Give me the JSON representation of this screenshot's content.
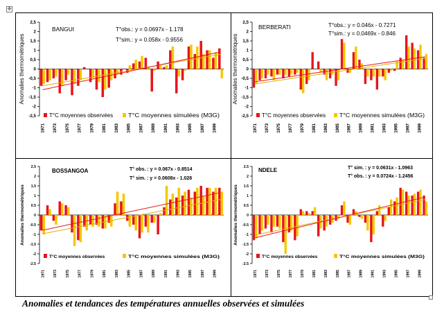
{
  "caption": "Anomalies et tendances des températures annuelles observées et simulées",
  "colors": {
    "observed": "#e8141c",
    "simulated": "#f5c800",
    "axis": "#000000"
  },
  "chart_data": [
    {
      "type": "bar",
      "station": "BANGUI",
      "ylabel": "Anomalies thermométriques",
      "ylim": [
        -2.5,
        2.5
      ],
      "yticks": [
        "2,5",
        "2",
        "1,5",
        "1",
        "0,5",
        "0",
        "-0,5",
        "-1",
        "-1,5",
        "-2",
        "-2,5"
      ],
      "x": [
        1971,
        1972,
        1973,
        1974,
        1975,
        1976,
        1977,
        1978,
        1979,
        1980,
        1981,
        1982,
        1983,
        1984,
        1985,
        1986,
        1987,
        1988,
        1989,
        1990,
        1991,
        1992,
        1993,
        1994,
        1995,
        1996,
        1997,
        1998,
        1999,
        2000
      ],
      "xticks": [
        "1971",
        "1973",
        "1975",
        "1977",
        "1979",
        "1981",
        "1983",
        "1985",
        "1987",
        "1989",
        "1991",
        "1993",
        "1995",
        "1997",
        "1999"
      ],
      "equations": [
        "T°obs.: y = 0.0697x - 1.178",
        "T°sim.: y = 0.058x - 0.9556"
      ],
      "trend_obs": {
        "slope": 0.0697,
        "intercept": -1.178
      },
      "trend_sim": {
        "slope": 0.058,
        "intercept": -0.9556
      },
      "series": [
        {
          "name": "T°C moyennes observées",
          "values": [
            -0.9,
            -0.7,
            -0.5,
            -1.3,
            -0.6,
            -1.4,
            -0.9,
            0.1,
            -0.7,
            -1.1,
            -1.5,
            -1.0,
            -0.5,
            -0.3,
            -0.2,
            0.3,
            0.4,
            0.6,
            -1.2,
            0.4,
            0.1,
            1.0,
            -1.3,
            -0.6,
            1.2,
            0.8,
            1.5,
            1.0,
            0.6,
            1.1
          ]
        },
        {
          "name": "T°C moyennes simulées (M3G)",
          "values": [
            -0.8,
            -0.6,
            -0.4,
            -0.9,
            -0.3,
            -0.8,
            -0.6,
            0.0,
            -0.5,
            -0.7,
            -1.1,
            -0.6,
            -0.3,
            0.0,
            0.2,
            0.5,
            0.7,
            0.1,
            -0.1,
            0.2,
            0.2,
            1.2,
            -0.4,
            -0.1,
            1.3,
            1.2,
            0.8,
            1.0,
            0.9,
            -0.5
          ]
        }
      ]
    },
    {
      "type": "bar",
      "station": "BERBERATI",
      "ylabel": "Anomalies thermométriques",
      "ylim": [
        -2.5,
        2.5
      ],
      "yticks": [
        "2,5",
        "2",
        "1,5",
        "1",
        "0,5",
        "0",
        "-0,5",
        "-1",
        "-1,5",
        "-2",
        "-2,5"
      ],
      "x": [
        1971,
        1972,
        1973,
        1974,
        1975,
        1976,
        1977,
        1978,
        1979,
        1980,
        1981,
        1982,
        1983,
        1984,
        1985,
        1986,
        1987,
        1988,
        1989,
        1990,
        1991,
        1992,
        1993,
        1994,
        1995,
        1996,
        1997,
        1998,
        1999,
        2000
      ],
      "xticks": [
        "1971",
        "1973",
        "1975",
        "1977",
        "1979",
        "1981",
        "1983",
        "1985",
        "1987",
        "1989",
        "1991",
        "1993",
        "1995",
        "1997",
        "1999"
      ],
      "equations": [
        "T°obs.: y = 0.046x - 0.7271",
        "T°sim.: y = 0.0469x - 0.846"
      ],
      "trend_obs": {
        "slope": 0.046,
        "intercept": -0.7271
      },
      "trend_sim": {
        "slope": 0.0469,
        "intercept": -0.846
      },
      "series": [
        {
          "name": "T°C moyennes observées",
          "values": [
            -1.0,
            -0.6,
            -0.5,
            -0.4,
            -0.3,
            -0.5,
            -0.4,
            -0.3,
            -1.1,
            -0.8,
            0.9,
            0.4,
            -0.3,
            -0.5,
            -0.9,
            1.6,
            -0.2,
            0.9,
            0.5,
            -0.8,
            -0.6,
            -1.1,
            -0.4,
            -0.2,
            -0.1,
            0.6,
            1.8,
            1.4,
            1.0,
            0.6
          ]
        },
        {
          "name": "T°C moyennes simulées (M3G)",
          "values": [
            -0.8,
            -0.5,
            -0.3,
            -0.6,
            -0.3,
            -0.3,
            -0.3,
            -0.2,
            -1.3,
            -0.6,
            0.0,
            -0.2,
            -0.6,
            -0.3,
            -0.6,
            1.4,
            -0.2,
            1.2,
            0.3,
            -0.4,
            -0.4,
            -0.4,
            -0.6,
            -0.1,
            0.4,
            0.5,
            1.2,
            1.1,
            1.3,
            0.8
          ]
        }
      ]
    },
    {
      "type": "bar",
      "station": "BOSSANGOA",
      "ylabel": "Anomalies thermométriques",
      "ylim": [
        -2.5,
        2.5
      ],
      "yticks": [
        "2.5",
        "2",
        "1.5",
        "1",
        "0.5",
        "0",
        "-0.5",
        "-1",
        "-1.5",
        "-2",
        "-2.5"
      ],
      "x": [
        1971,
        1972,
        1973,
        1974,
        1975,
        1976,
        1977,
        1978,
        1979,
        1980,
        1981,
        1982,
        1983,
        1984,
        1985,
        1986,
        1987,
        1988,
        1989,
        1990,
        1991,
        1992,
        1993,
        1994,
        1995,
        1996,
        1997,
        1998,
        1999,
        2000
      ],
      "xticks": [
        "1971",
        "1973",
        "1975",
        "1977",
        "1979",
        "1981",
        "1983",
        "1985",
        "1987",
        "1989",
        "1991",
        "1993",
        "1995",
        "1997",
        "1999"
      ],
      "equations": [
        "T° obs. : y = 0.067x - 0.8514",
        "T° sim. : y = 0.0608x - 1.028"
      ],
      "trend_obs": {
        "slope": 0.067,
        "intercept": -0.8514
      },
      "trend_sim": {
        "slope": 0.0608,
        "intercept": -1.028
      },
      "series": [
        {
          "name": "T°C moyennes observées",
          "values": [
            -0.8,
            0.5,
            -0.3,
            0.7,
            0.5,
            -0.9,
            -1.3,
            -0.6,
            -0.5,
            -0.5,
            -0.7,
            -0.4,
            0.6,
            0.7,
            -0.3,
            -0.5,
            -1.2,
            -0.6,
            -0.4,
            -1.0,
            0.4,
            0.8,
            0.9,
            1.0,
            1.3,
            1.2,
            1.5,
            1.4,
            1.2,
            1.4
          ]
        },
        {
          "name": "T°C moyennes simulées (M3G)",
          "values": [
            -1.0,
            0.3,
            -0.5,
            0.6,
            0.4,
            -1.6,
            -1.4,
            -0.8,
            -0.6,
            -0.6,
            -0.7,
            -0.6,
            1.2,
            1.1,
            -0.6,
            -0.8,
            -0.9,
            -0.9,
            -0.4,
            0.1,
            1.5,
            1.1,
            1.4,
            1.2,
            0.9,
            1.4,
            1.0,
            1.4,
            1.4,
            1.2
          ]
        }
      ]
    },
    {
      "type": "bar",
      "station": "NDELE",
      "ylabel": "Anomalies thermométriques",
      "ylim": [
        -2.5,
        2.5
      ],
      "yticks": [
        "2.5",
        "2",
        "1.5",
        "1",
        "0.5",
        "0",
        "-0.5",
        "-1",
        "-1.5",
        "-2",
        "-2.5"
      ],
      "x": [
        1971,
        1972,
        1973,
        1974,
        1975,
        1976,
        1977,
        1978,
        1979,
        1980,
        1981,
        1982,
        1983,
        1984,
        1985,
        1986,
        1987,
        1988,
        1989,
        1990,
        1991,
        1992,
        1993,
        1994,
        1995,
        1996,
        1997,
        1998,
        1999,
        2000
      ],
      "xticks": [
        "1971",
        "1973",
        "1975",
        "1977",
        "1979",
        "1981",
        "1983",
        "1985",
        "1987",
        "1989",
        "1991",
        "1993",
        "1995",
        "1997",
        "1999"
      ],
      "equations": [
        "T° sim. : y = 0.0631x - 1.0963",
        "T° obs. : y = 0.0724x - 1.2456"
      ],
      "trend_obs": {
        "slope": 0.0724,
        "intercept": -1.2456
      },
      "trend_sim": {
        "slope": 0.0631,
        "intercept": -1.0963
      },
      "series": [
        {
          "name": "T°C moyennes observées",
          "values": [
            -1.3,
            -1.0,
            -0.7,
            -0.9,
            -0.6,
            -1.4,
            -0.9,
            -1.3,
            0.3,
            0.2,
            0.2,
            -1.1,
            -0.8,
            -0.5,
            -0.3,
            0.5,
            -0.4,
            0.3,
            -0.1,
            -0.4,
            -1.4,
            0.2,
            -0.6,
            0.4,
            0.7,
            1.4,
            1.2,
            1.0,
            1.2,
            1.0
          ]
        },
        {
          "name": "T°C moyennes simulées (M3G)",
          "values": [
            -1.2,
            -0.8,
            -0.5,
            -0.6,
            -0.7,
            -2.0,
            -0.8,
            -1.1,
            0.2,
            0.1,
            0.4,
            -0.7,
            -0.6,
            -0.4,
            -0.2,
            0.7,
            -0.5,
            0.2,
            -0.2,
            -0.8,
            -1.0,
            0.5,
            -0.3,
            0.8,
            0.9,
            1.3,
            1.0,
            1.1,
            1.3,
            0.7
          ]
        }
      ]
    }
  ]
}
